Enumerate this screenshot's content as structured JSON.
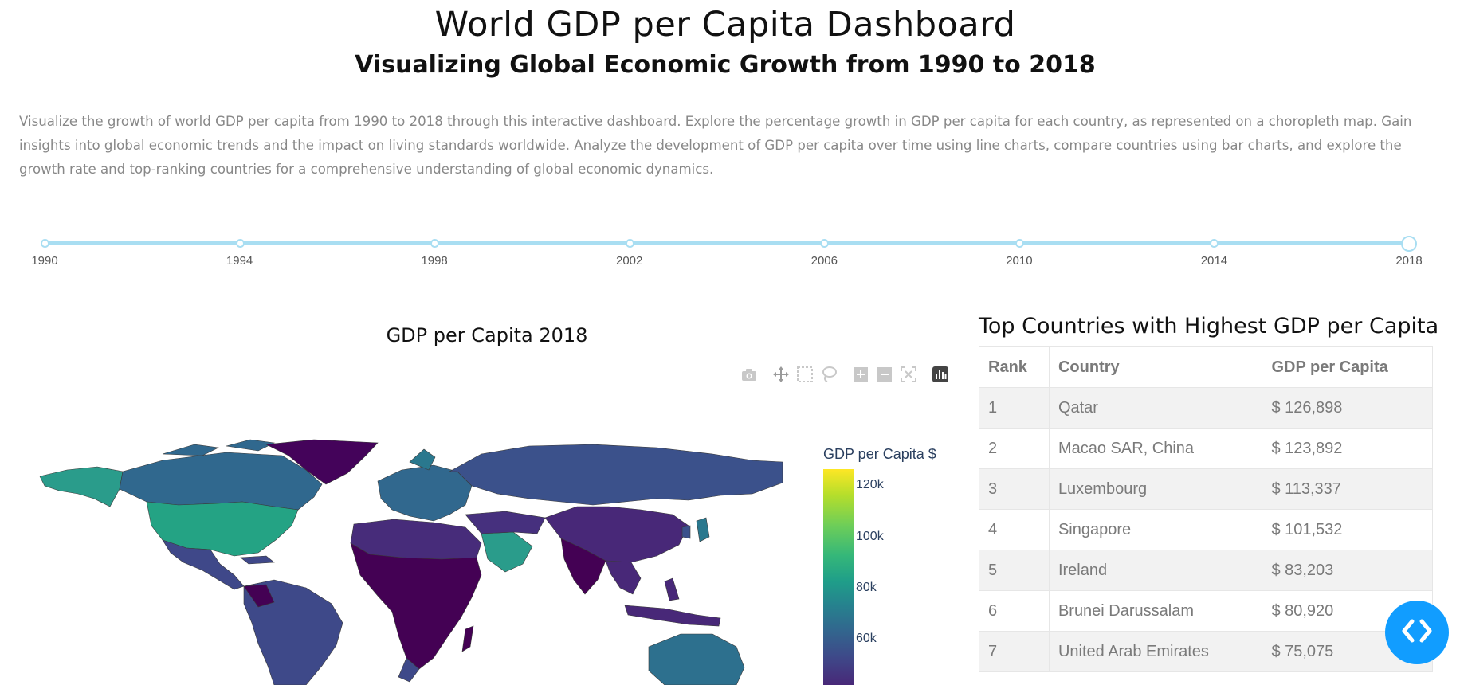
{
  "header": {
    "title": "World GDP per Capita Dashboard",
    "subtitle": "Visualizing Global Economic Growth from 1990 to 2018",
    "description": "Visualize the growth of world GDP per capita from 1990 to 2018 through this interactive dashboard. Explore the percentage growth in GDP per capita for each country, as represented on a choropleth map. Gain insights into global economic trends and the impact on living standards worldwide. Analyze the development of GDP per capita over time using line charts, compare countries using bar charts, and explore the growth rate and top-ranking countries for a comprehensive understanding of global economic dynamics."
  },
  "year_slider": {
    "marks": [
      "1990",
      "1994",
      "1998",
      "2002",
      "2006",
      "2010",
      "2014",
      "2018"
    ],
    "selected": "2018",
    "min": 1990,
    "max": 2018,
    "rail_color": "#a9def2"
  },
  "map": {
    "title": "GDP per Capita 2018",
    "colorbar_title": "GDP per Capita $",
    "colorbar_ticks": [
      "120k",
      "100k",
      "80k",
      "60k"
    ],
    "colorscale": "Viridis",
    "modebar": [
      "camera-icon",
      "pan-icon",
      "box-select-icon",
      "lasso-icon",
      "zoom-in-icon",
      "zoom-out-icon",
      "reset-axes-icon",
      "plotly-logo-icon"
    ]
  },
  "ranking": {
    "title": "Top Countries with Highest GDP per Capita",
    "columns": [
      "Rank",
      "Country",
      "GDP per Capita"
    ],
    "rows": [
      [
        "1",
        "Qatar",
        "$ 126,898"
      ],
      [
        "2",
        "Macao SAR, China",
        "$ 123,892"
      ],
      [
        "3",
        "Luxembourg",
        "$ 113,337"
      ],
      [
        "4",
        "Singapore",
        "$ 101,532"
      ],
      [
        "5",
        "Ireland",
        "$ 83,203"
      ],
      [
        "6",
        "Brunei Darussalam",
        "$ 80,920"
      ],
      [
        "7",
        "United Arab Emirates",
        "$ 75,075"
      ]
    ]
  },
  "fab": {
    "icon": "code-toggle-icon",
    "color": "#119dff"
  }
}
